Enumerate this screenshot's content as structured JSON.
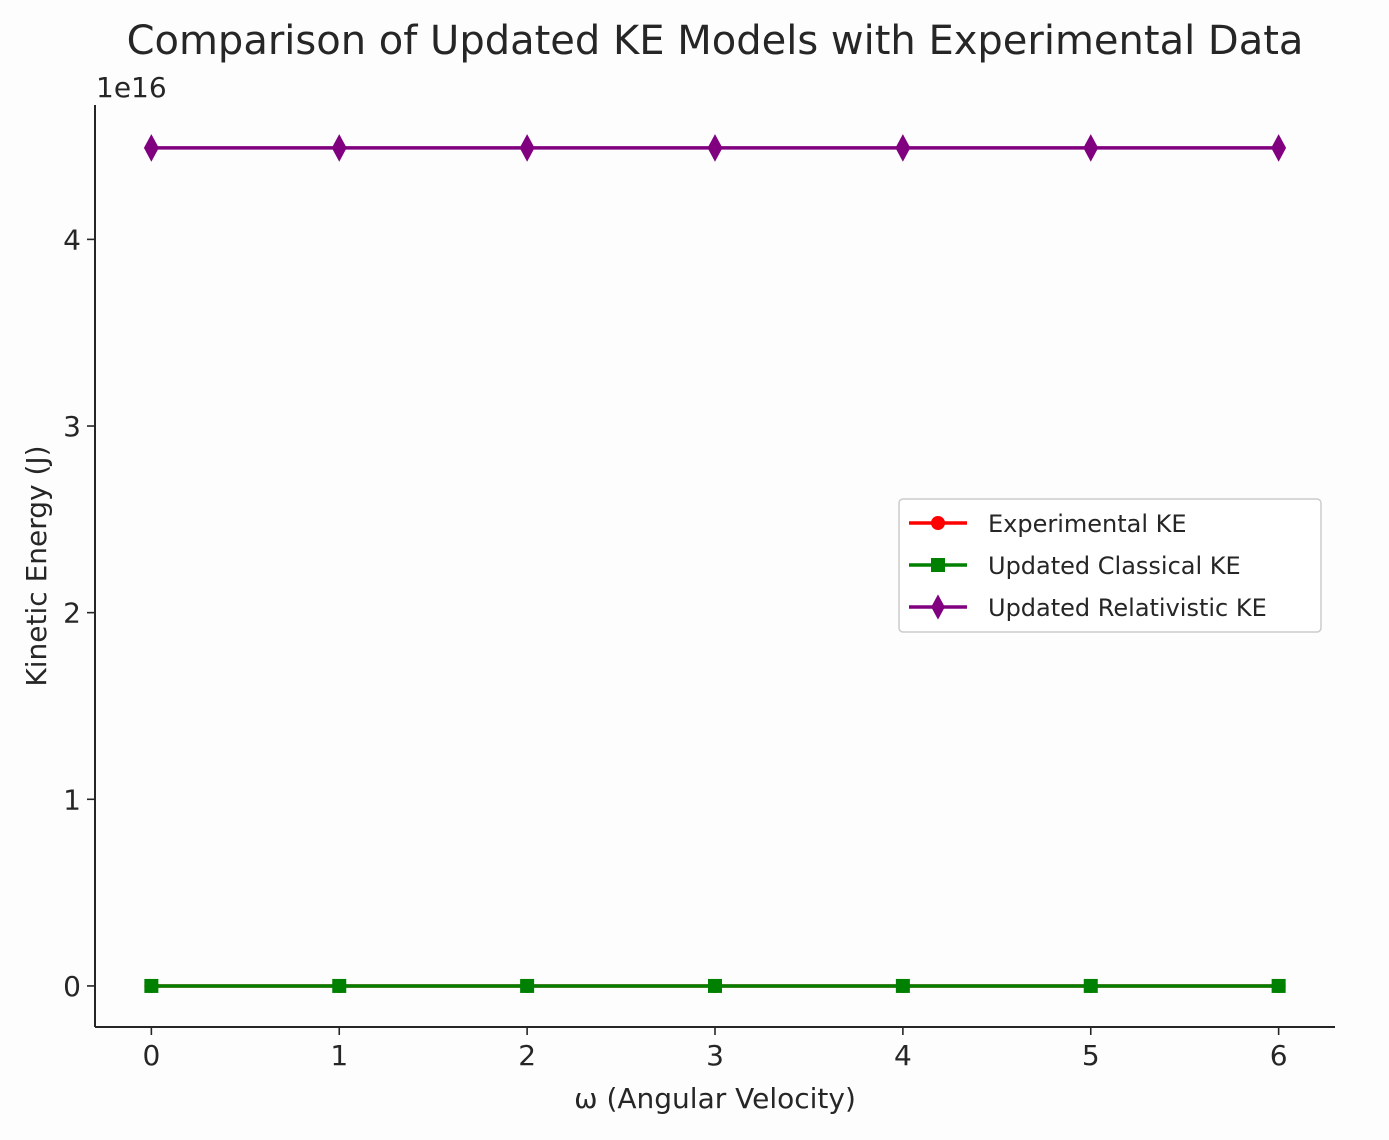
{
  "chart_data": {
    "type": "line",
    "title": "Comparison of Updated KE Models with Experimental Data",
    "xlabel": "ω (Angular Velocity)",
    "ylabel": "Kinetic Energy (J)",
    "y_offset_label": "1e16",
    "x": [
      0,
      1,
      2,
      3,
      4,
      5,
      6
    ],
    "xlim": [
      -0.3,
      6.3
    ],
    "ylim": [
      -0.22,
      4.72
    ],
    "y_scale_factor": 1e+16,
    "x_ticks": [
      0,
      1,
      2,
      3,
      4,
      5,
      6
    ],
    "y_ticks": [
      0,
      1,
      2,
      3,
      4
    ],
    "grid": false,
    "legend_position": "center-right",
    "series": [
      {
        "name": "Experimental KE",
        "color": "#ff0000",
        "marker": "circle",
        "values": [
          0,
          0,
          0,
          0,
          0,
          0,
          0
        ]
      },
      {
        "name": "Updated Classical KE",
        "color": "#008000",
        "marker": "square",
        "values": [
          0,
          0,
          0,
          0,
          0,
          0,
          0
        ]
      },
      {
        "name": "Updated Relativistic KE",
        "color": "#800080",
        "marker": "diamond",
        "values": [
          4.49,
          4.49,
          4.49,
          4.49,
          4.49,
          4.49,
          4.49
        ]
      }
    ]
  }
}
